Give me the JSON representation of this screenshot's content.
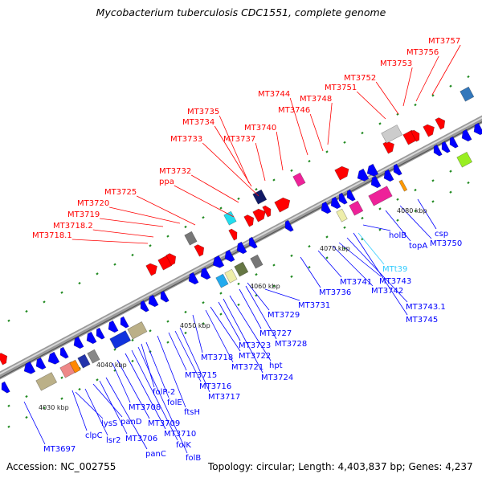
{
  "title": "Mycobacterium tuberculosis CDC1551, complete genome",
  "footer": {
    "accession": "Accession: NC_002755",
    "summary": "Topology: circular; Length: 4,403,837 bp; Genes: 4,237"
  },
  "colors": {
    "top_strand_label": "#ff0000",
    "bottom_strand_label": "#0000ff",
    "rna_label": "#33ccff",
    "forward_gene": "#ff0000",
    "reverse_gene": "#0000ff",
    "backbone": "#888888",
    "tick": "#228b22"
  },
  "kbp_marks": [
    "4030 kbp",
    "4040 kbp",
    "4050 kbp",
    "4060 kbp",
    "4070 kbp",
    "4080 kbp"
  ],
  "top_labels": [
    "MT3718.1",
    "MT3718.2",
    "MT3719",
    "MT3720",
    "MT3725",
    "ppa",
    "MT3732",
    "MT3733",
    "MT3734",
    "MT3735",
    "MT3737",
    "MT3740",
    "MT3744",
    "MT3746",
    "MT3748",
    "MT3751",
    "MT3752",
    "MT3753",
    "MT3756",
    "MT3757"
  ],
  "bottom_labels": [
    "MT3697",
    "clpC",
    "lysS",
    "lsr2",
    "panD",
    "MT3706",
    "panC",
    "MT3708",
    "MT3709",
    "MT3710",
    "folK",
    "folB",
    "folP-2",
    "folE",
    "ftsH",
    "MT3715",
    "MT3716",
    "MT3717",
    "MT3718",
    "MT3721",
    "MT3722",
    "MT3723",
    "MT3724",
    "hpt",
    "MT3727",
    "MT3728",
    "MT3729",
    "MT3731",
    "MT3736",
    "MT3741",
    "MT3742",
    "MT3743",
    "MT3743.1",
    "MT3745",
    "MTt39",
    "holB",
    "topA",
    "MT3750",
    "csp"
  ]
}
